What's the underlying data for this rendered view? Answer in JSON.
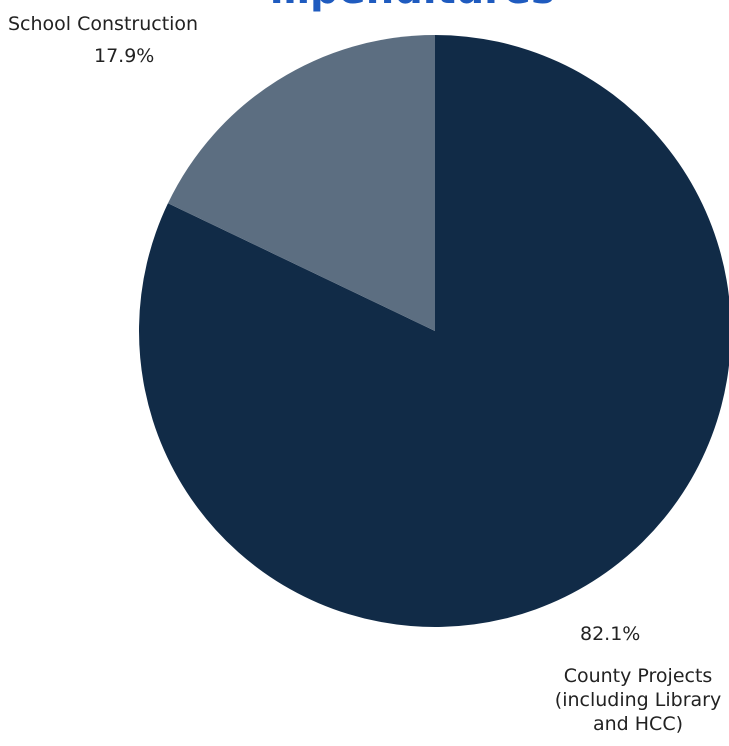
{
  "chart_data": {
    "type": "pie",
    "title": "…penditures",
    "slices": [
      {
        "label_lines": [
          "County Projects",
          "(including Library",
          "and HCC)"
        ],
        "value": 82.1,
        "value_label": "82.1%",
        "color": "#112b47"
      },
      {
        "label_lines": [
          "School Construction"
        ],
        "value": 17.9,
        "value_label": "17.9%",
        "color": "#5c6e81"
      }
    ],
    "start_angle_deg": 0,
    "direction": "clockwise",
    "legend": "none"
  }
}
